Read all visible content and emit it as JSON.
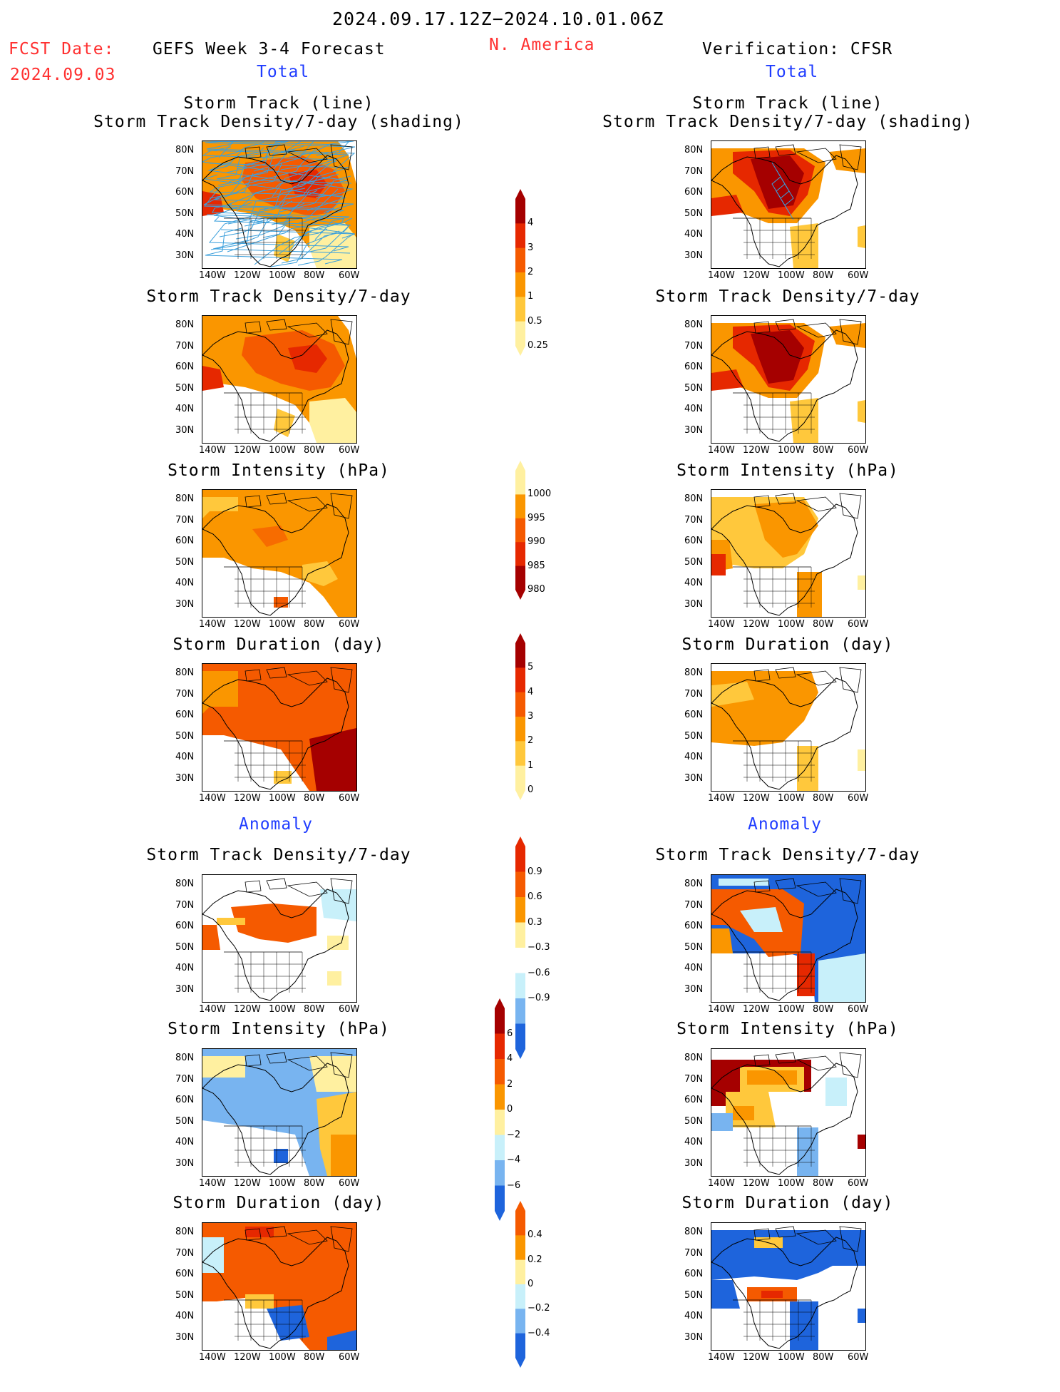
{
  "header": {
    "date_range": "2024.09.17.12Z−2024.10.01.06Z",
    "fcst_label": "FCST Date:",
    "fcst_date": "2024.09.03",
    "model_title": "GEFS Week 3-4 Forecast",
    "region": "N. America",
    "verification": "Verification: CFSR"
  },
  "sections": {
    "total": "Total",
    "anomaly": "Anomaly"
  },
  "panel_titles": {
    "track_line": "Storm Track (line)",
    "track_shading": "Storm Track Density/7-day (shading)",
    "density": "Storm Track Density/7-day",
    "intensity": "Storm Intensity (hPa)",
    "duration": "Storm Duration (day)"
  },
  "axes": {
    "lat_ticks": [
      "80N",
      "70N",
      "60N",
      "50N",
      "40N",
      "30N"
    ],
    "lon_ticks": [
      "140W",
      "120W",
      "100W",
      "80W",
      "60W"
    ]
  },
  "colorbars": {
    "density_total": [
      "4",
      "3",
      "2",
      "1",
      "0.5",
      "0.25"
    ],
    "intensity_total": [
      "1000",
      "995",
      "990",
      "985",
      "980"
    ],
    "duration_total": [
      "5",
      "4",
      "3",
      "2",
      "1",
      "0"
    ],
    "density_anom": [
      "0.9",
      "0.6",
      "0.3",
      "−0.3",
      "−0.6",
      "−0.9"
    ],
    "intensity_anom": [
      "6",
      "4",
      "2",
      "0",
      "−2",
      "−4",
      "−6"
    ],
    "duration_anom": [
      "0.4",
      "0.2",
      "0",
      "−0.2",
      "−0.4"
    ]
  },
  "colors": {
    "title_red": "#ff3030",
    "section_blue": "#1f3cff",
    "dark_red": "#a50000",
    "red": "#e62800",
    "orange_red": "#f55a00",
    "orange": "#fa9600",
    "light_orange": "#ffc83c",
    "pale_yellow": "#fff0a0",
    "light_blue": "#c8f0fa",
    "sky_blue": "#78b4f0",
    "blue": "#1e64dc",
    "track_line": "#3ca0dc"
  }
}
